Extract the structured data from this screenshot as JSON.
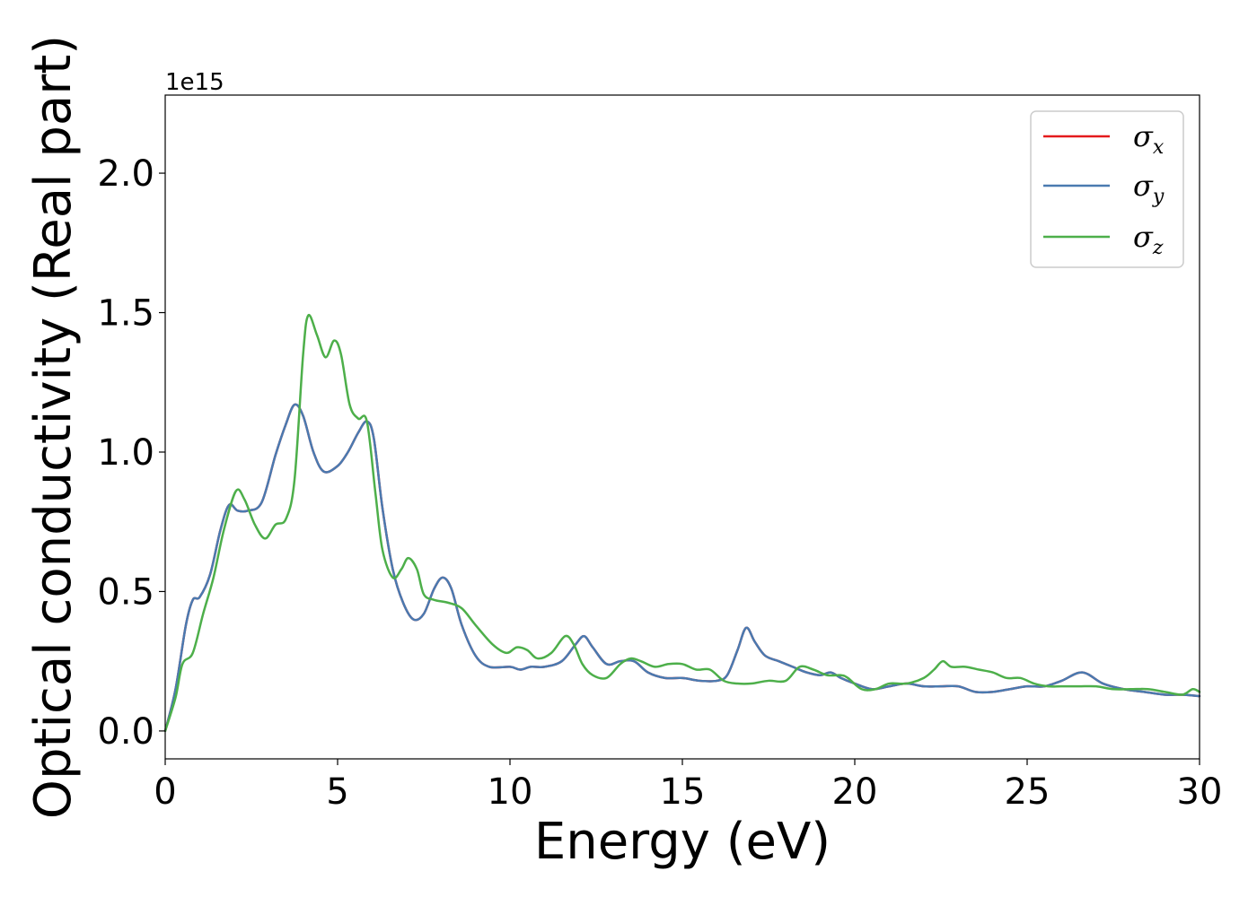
{
  "chart_data": {
    "type": "line",
    "xlabel": "Energy (eV)",
    "ylabel": "Optical conductivity (Real part)",
    "y_offset_label": "1e15",
    "xlim": [
      0,
      30
    ],
    "ylim": [
      -0.1,
      2.28
    ],
    "xticks": [
      0,
      5,
      10,
      15,
      20,
      25,
      30
    ],
    "yticks": [
      0.0,
      0.5,
      1.0,
      1.5,
      2.0
    ],
    "xtick_labels": [
      "0",
      "5",
      "10",
      "15",
      "20",
      "25",
      "30"
    ],
    "ytick_labels": [
      "0.0",
      "0.5",
      "1.0",
      "1.5",
      "2.0"
    ],
    "grid": false,
    "legend_position": "top-right",
    "series": [
      {
        "name": "σx",
        "legend_base": "σ",
        "legend_sub": "x",
        "color": "#e41a1c",
        "x": [
          0,
          0.3,
          0.6,
          0.8,
          1.0,
          1.3,
          1.6,
          1.85,
          2.1,
          2.4,
          2.8,
          3.2,
          3.5,
          3.75,
          4.0,
          4.3,
          4.6,
          5.0,
          5.3,
          5.6,
          5.85,
          6.05,
          6.3,
          6.6,
          6.9,
          7.2,
          7.5,
          7.8,
          8.05,
          8.3,
          8.6,
          9.0,
          9.4,
          10.0,
          10.3,
          10.6,
          11.0,
          11.5,
          11.9,
          12.15,
          12.4,
          12.8,
          13.2,
          13.6,
          14.0,
          14.5,
          15.0,
          15.5,
          16.0,
          16.3,
          16.6,
          16.85,
          17.1,
          17.4,
          17.8,
          18.2,
          18.6,
          19.0,
          19.3,
          19.6,
          20.0,
          20.5,
          21.0,
          21.5,
          22.0,
          22.5,
          23.0,
          23.5,
          24.0,
          24.5,
          25.0,
          25.5,
          26.0,
          26.6,
          27.2,
          27.8,
          28.4,
          29.0,
          29.5,
          30.0
        ],
        "y": [
          0.0,
          0.15,
          0.38,
          0.47,
          0.48,
          0.56,
          0.72,
          0.81,
          0.79,
          0.79,
          0.82,
          0.99,
          1.1,
          1.17,
          1.13,
          1.0,
          0.93,
          0.95,
          1.0,
          1.07,
          1.11,
          1.05,
          0.8,
          0.58,
          0.46,
          0.4,
          0.42,
          0.51,
          0.55,
          0.51,
          0.38,
          0.27,
          0.23,
          0.23,
          0.22,
          0.23,
          0.23,
          0.25,
          0.31,
          0.34,
          0.3,
          0.24,
          0.25,
          0.25,
          0.21,
          0.19,
          0.19,
          0.18,
          0.18,
          0.2,
          0.29,
          0.37,
          0.32,
          0.27,
          0.25,
          0.23,
          0.21,
          0.2,
          0.21,
          0.19,
          0.17,
          0.15,
          0.16,
          0.17,
          0.16,
          0.16,
          0.16,
          0.14,
          0.14,
          0.15,
          0.16,
          0.16,
          0.18,
          0.21,
          0.17,
          0.15,
          0.14,
          0.13,
          0.13,
          0.125
        ]
      },
      {
        "name": "σy",
        "legend_base": "σ",
        "legend_sub": "y",
        "color": "#4a7ab0",
        "x": [
          0,
          0.3,
          0.6,
          0.8,
          1.0,
          1.3,
          1.6,
          1.85,
          2.1,
          2.4,
          2.8,
          3.2,
          3.5,
          3.75,
          4.0,
          4.3,
          4.6,
          5.0,
          5.3,
          5.6,
          5.85,
          6.05,
          6.3,
          6.6,
          6.9,
          7.2,
          7.5,
          7.8,
          8.05,
          8.3,
          8.6,
          9.0,
          9.4,
          10.0,
          10.3,
          10.6,
          11.0,
          11.5,
          11.9,
          12.15,
          12.4,
          12.8,
          13.2,
          13.6,
          14.0,
          14.5,
          15.0,
          15.5,
          16.0,
          16.3,
          16.6,
          16.85,
          17.1,
          17.4,
          17.8,
          18.2,
          18.6,
          19.0,
          19.3,
          19.6,
          20.0,
          20.5,
          21.0,
          21.5,
          22.0,
          22.5,
          23.0,
          23.5,
          24.0,
          24.5,
          25.0,
          25.5,
          26.0,
          26.6,
          27.2,
          27.8,
          28.4,
          29.0,
          29.5,
          30.0
        ],
        "y": [
          0.0,
          0.15,
          0.38,
          0.47,
          0.48,
          0.56,
          0.72,
          0.81,
          0.79,
          0.79,
          0.82,
          0.99,
          1.1,
          1.17,
          1.13,
          1.0,
          0.93,
          0.95,
          1.0,
          1.07,
          1.11,
          1.05,
          0.8,
          0.58,
          0.46,
          0.4,
          0.42,
          0.51,
          0.55,
          0.51,
          0.38,
          0.27,
          0.23,
          0.23,
          0.22,
          0.23,
          0.23,
          0.25,
          0.31,
          0.34,
          0.3,
          0.24,
          0.25,
          0.25,
          0.21,
          0.19,
          0.19,
          0.18,
          0.18,
          0.2,
          0.29,
          0.37,
          0.32,
          0.27,
          0.25,
          0.23,
          0.21,
          0.2,
          0.21,
          0.19,
          0.17,
          0.15,
          0.16,
          0.17,
          0.16,
          0.16,
          0.16,
          0.14,
          0.14,
          0.15,
          0.16,
          0.16,
          0.18,
          0.21,
          0.17,
          0.15,
          0.14,
          0.13,
          0.13,
          0.125
        ]
      },
      {
        "name": "σz",
        "legend_base": "σ",
        "legend_sub": "z",
        "color": "#4daf4a",
        "x": [
          0,
          0.3,
          0.5,
          0.8,
          1.1,
          1.4,
          1.7,
          2.05,
          2.3,
          2.6,
          2.9,
          3.2,
          3.5,
          3.75,
          4.0,
          4.15,
          4.4,
          4.65,
          4.9,
          5.1,
          5.35,
          5.6,
          5.85,
          6.1,
          6.3,
          6.6,
          6.85,
          7.05,
          7.3,
          7.5,
          7.8,
          8.2,
          8.6,
          9.0,
          9.5,
          9.9,
          10.2,
          10.5,
          10.8,
          11.2,
          11.6,
          11.85,
          12.1,
          12.4,
          12.8,
          13.2,
          13.5,
          13.8,
          14.2,
          14.6,
          15.0,
          15.4,
          15.8,
          16.2,
          16.6,
          17.0,
          17.5,
          18.0,
          18.4,
          18.8,
          19.2,
          19.6,
          19.8,
          20.2,
          20.6,
          21.0,
          21.5,
          22.0,
          22.3,
          22.55,
          22.8,
          23.2,
          23.6,
          24.0,
          24.4,
          24.8,
          25.2,
          25.6,
          26.0,
          26.5,
          27.0,
          27.5,
          28.0,
          28.5,
          29.0,
          29.5,
          29.8,
          30.0
        ],
        "y": [
          0.0,
          0.12,
          0.24,
          0.28,
          0.42,
          0.55,
          0.72,
          0.86,
          0.83,
          0.74,
          0.69,
          0.74,
          0.76,
          0.9,
          1.35,
          1.49,
          1.42,
          1.34,
          1.4,
          1.35,
          1.17,
          1.12,
          1.11,
          0.85,
          0.65,
          0.55,
          0.58,
          0.62,
          0.58,
          0.49,
          0.47,
          0.46,
          0.44,
          0.38,
          0.31,
          0.28,
          0.3,
          0.29,
          0.26,
          0.28,
          0.34,
          0.31,
          0.24,
          0.2,
          0.19,
          0.24,
          0.26,
          0.25,
          0.23,
          0.24,
          0.24,
          0.22,
          0.22,
          0.18,
          0.17,
          0.17,
          0.18,
          0.18,
          0.23,
          0.22,
          0.2,
          0.2,
          0.19,
          0.15,
          0.15,
          0.17,
          0.17,
          0.19,
          0.22,
          0.25,
          0.23,
          0.23,
          0.22,
          0.21,
          0.19,
          0.19,
          0.17,
          0.16,
          0.16,
          0.16,
          0.16,
          0.15,
          0.15,
          0.15,
          0.14,
          0.13,
          0.15,
          0.14
        ]
      }
    ]
  }
}
